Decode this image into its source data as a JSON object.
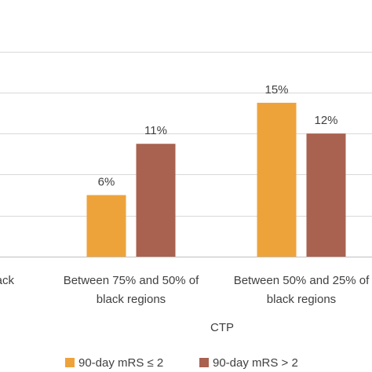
{
  "chart_data": {
    "type": "bar",
    "xlabel": "CTP",
    "ylabel": "",
    "ylim": [
      0,
      20
    ],
    "grid": true,
    "legend_position": "bottom",
    "categories": [
      {
        "line1": "black",
        "line2": ""
      },
      {
        "line1": "Between 75% and 50% of",
        "line2": "black regions"
      },
      {
        "line1": "Between 50% and 25% of",
        "line2": "black regions"
      }
    ],
    "series": [
      {
        "name": "90-day mRS ≤ 2",
        "color": "#EEA33A",
        "values": [
          null,
          6,
          15
        ],
        "labels": [
          "",
          "6%",
          "15%"
        ]
      },
      {
        "name": "90-day mRS > 2",
        "color": "#A9624F",
        "values": [
          null,
          11,
          12
        ],
        "labels": [
          "",
          "11%",
          "12%"
        ]
      }
    ]
  }
}
